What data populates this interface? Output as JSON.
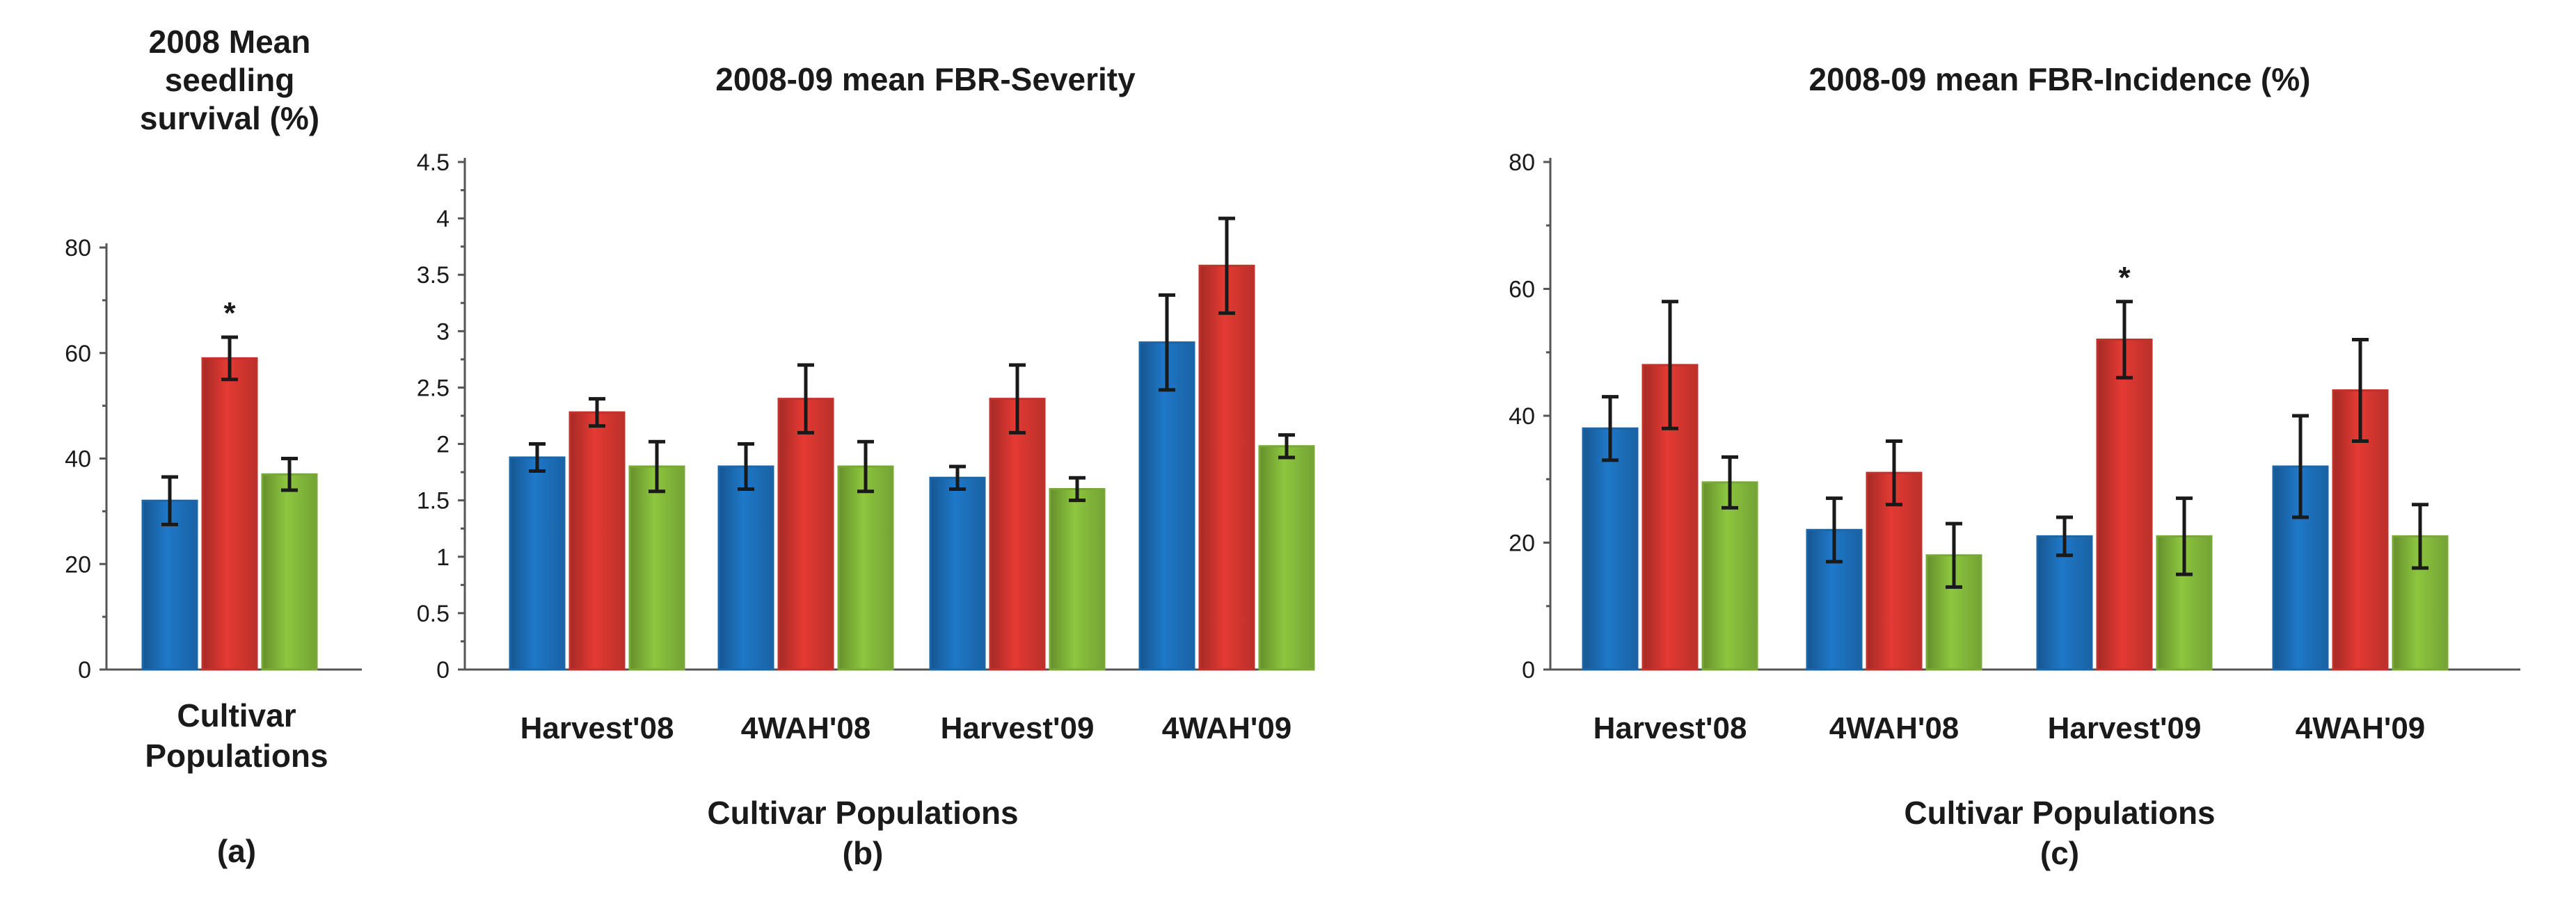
{
  "figure": {
    "colors": {
      "series1": "#1f78c8",
      "series2": "#e43a33",
      "series3": "#8dc63f"
    }
  },
  "chart_data": [
    {
      "id": "a",
      "type": "bar",
      "title": [
        "2008 Mean",
        "seedling",
        "survival (%)"
      ],
      "xlabel": [
        "Cultivar",
        "Populations"
      ],
      "panel_label": "(a)",
      "ylim": [
        0,
        80
      ],
      "yticks": [
        "0",
        "20",
        "40",
        "60",
        "80"
      ],
      "categories": [
        ""
      ],
      "series": [
        {
          "values": [
            32
          ],
          "errors": [
            4.5
          ]
        },
        {
          "values": [
            59
          ],
          "errors": [
            4
          ]
        },
        {
          "values": [
            37
          ],
          "errors": [
            3
          ]
        }
      ],
      "annotations": [
        {
          "category": 0,
          "series": 1,
          "text": "*"
        }
      ]
    },
    {
      "id": "b",
      "type": "bar",
      "title": [
        "2008-09 mean FBR-Severity"
      ],
      "xlabel": [
        "Cultivar Populations"
      ],
      "panel_label": "(b)",
      "ylim": [
        0,
        4.5
      ],
      "yticks": [
        "0",
        "0.5",
        "1",
        "1.5",
        "2",
        "2.5",
        "3",
        "3.5",
        "4",
        "4.5"
      ],
      "categories": [
        "Harvest'08",
        "4WAH'08",
        "Harvest'09",
        "4WAH'09"
      ],
      "series": [
        {
          "values": [
            1.88,
            1.8,
            1.7,
            2.9
          ],
          "errors": [
            0.12,
            0.2,
            0.1,
            0.42
          ]
        },
        {
          "values": [
            2.28,
            2.4,
            2.4,
            3.58
          ],
          "errors": [
            0.12,
            0.3,
            0.3,
            0.42
          ]
        },
        {
          "values": [
            1.8,
            1.8,
            1.6,
            1.98
          ],
          "errors": [
            0.22,
            0.22,
            0.1,
            0.1
          ]
        }
      ],
      "annotations": []
    },
    {
      "id": "c",
      "type": "bar",
      "title": [
        "2008-09 mean FBR-Incidence (%)"
      ],
      "xlabel": [
        "Cultivar Populations"
      ],
      "panel_label": "(c)",
      "ylim": [
        0,
        80
      ],
      "yticks": [
        "0",
        "20",
        "40",
        "60",
        "80"
      ],
      "categories": [
        "Harvest'08",
        "4WAH'08",
        "Harvest'09",
        "4WAH'09"
      ],
      "series": [
        {
          "values": [
            38,
            22,
            21,
            32
          ],
          "errors": [
            5,
            5,
            3,
            8
          ]
        },
        {
          "values": [
            48,
            31,
            52,
            44
          ],
          "errors": [
            10,
            5,
            6,
            8
          ]
        },
        {
          "values": [
            29.5,
            18,
            21,
            21
          ],
          "errors": [
            4,
            5,
            6,
            5
          ]
        }
      ],
      "annotations": [
        {
          "category": 2,
          "series": 1,
          "text": "*"
        }
      ]
    }
  ]
}
